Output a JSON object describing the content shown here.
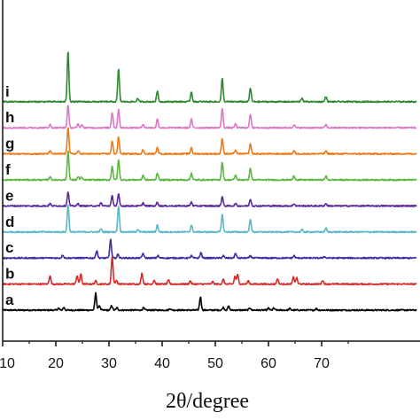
{
  "chart_data": {
    "type": "line",
    "title": "",
    "xlabel": "2θ/degree",
    "ylabel": "",
    "xlim": [
      10,
      75
    ],
    "x_ticks": [
      "10",
      "20",
      "30",
      "40",
      "50",
      "60",
      "70"
    ],
    "x_tick_values": [
      10,
      20,
      30,
      40,
      50,
      60,
      70
    ],
    "grid": false,
    "legend": "none",
    "stacked": true,
    "series": [
      {
        "name": "a",
        "color": "#000000",
        "offset": 0,
        "peaks": [
          [
            20.5,
            0.25
          ],
          [
            21.5,
            0.35
          ],
          [
            27.5,
            2.2
          ],
          [
            28.2,
            0.6
          ],
          [
            30.5,
            0.6
          ],
          [
            31.5,
            0.3
          ],
          [
            36.5,
            0.3
          ],
          [
            41.5,
            0.2
          ],
          [
            47.2,
            1.7
          ],
          [
            51.5,
            0.35
          ],
          [
            52.5,
            0.5
          ],
          [
            56.5,
            0.3
          ],
          [
            60,
            0.25
          ],
          [
            61,
            0.25
          ],
          [
            64,
            0.2
          ],
          [
            69,
            0.2
          ]
        ]
      },
      {
        "name": "b",
        "color": "#d62a2a",
        "offset": 1,
        "peaks": [
          [
            18.9,
            1.1
          ],
          [
            24.0,
            1.1
          ],
          [
            24.7,
            1.3
          ],
          [
            27.5,
            0.4
          ],
          [
            30.6,
            3.6
          ],
          [
            31.4,
            0.5
          ],
          [
            36.2,
            1.4
          ],
          [
            38.5,
            0.5
          ],
          [
            41.2,
            0.5
          ],
          [
            45.3,
            0.4
          ],
          [
            49.5,
            0.3
          ],
          [
            51.5,
            0.6
          ],
          [
            53.7,
            1.0
          ],
          [
            54.2,
            1.2
          ],
          [
            56.2,
            0.4
          ],
          [
            61.7,
            0.7
          ],
          [
            64.7,
            0.9
          ],
          [
            65.3,
            0.8
          ],
          [
            70.2,
            0.5
          ]
        ]
      },
      {
        "name": "c",
        "color": "#3f2ca0",
        "offset": 2,
        "peaks": [
          [
            21.3,
            0.4
          ],
          [
            27.7,
            1.0
          ],
          [
            30.3,
            2.4
          ],
          [
            31.7,
            0.5
          ],
          [
            36.4,
            0.6
          ],
          [
            39.2,
            0.3
          ],
          [
            45.5,
            0.3
          ],
          [
            47.3,
            0.7
          ],
          [
            51.5,
            0.3
          ],
          [
            53.8,
            0.6
          ],
          [
            56.6,
            0.3
          ],
          [
            64.8,
            0.3
          ],
          [
            70.5,
            0.2
          ]
        ]
      },
      {
        "name": "d",
        "color": "#5ab8c8",
        "offset": 3,
        "peaks": [
          [
            22.3,
            3.6
          ],
          [
            28.5,
            0.4
          ],
          [
            31.8,
            3.4
          ],
          [
            35.4,
            0.35
          ],
          [
            39.1,
            0.9
          ],
          [
            45.5,
            0.9
          ],
          [
            51.3,
            2.3
          ],
          [
            56.6,
            1.7
          ],
          [
            66.3,
            0.3
          ],
          [
            70.8,
            0.5
          ]
        ]
      },
      {
        "name": "e",
        "color": "#5a2a9a",
        "offset": 4,
        "peaks": [
          [
            18.9,
            0.3
          ],
          [
            22.3,
            1.8
          ],
          [
            24.2,
            0.3
          ],
          [
            28.5,
            0.4
          ],
          [
            30.6,
            1.3
          ],
          [
            31.8,
            1.5
          ],
          [
            36.4,
            0.4
          ],
          [
            39.1,
            0.5
          ],
          [
            45.5,
            0.5
          ],
          [
            51.3,
            1.2
          ],
          [
            53.8,
            0.3
          ],
          [
            56.6,
            0.9
          ],
          [
            64.8,
            0.3
          ],
          [
            70.8,
            0.3
          ]
        ]
      },
      {
        "name": "f",
        "color": "#5cb840",
        "offset": 5,
        "peaks": [
          [
            18.9,
            0.4
          ],
          [
            22.3,
            3.8
          ],
          [
            24.2,
            0.4
          ],
          [
            24.8,
            0.35
          ],
          [
            30.6,
            1.8
          ],
          [
            31.8,
            2.6
          ],
          [
            36.4,
            0.6
          ],
          [
            39.1,
            0.9
          ],
          [
            45.5,
            0.9
          ],
          [
            51.3,
            2.3
          ],
          [
            53.8,
            0.6
          ],
          [
            56.6,
            1.5
          ],
          [
            64.8,
            0.5
          ],
          [
            70.8,
            0.5
          ]
        ]
      },
      {
        "name": "g",
        "color": "#f07a18",
        "offset": 6,
        "peaks": [
          [
            18.9,
            0.4
          ],
          [
            22.3,
            3.5
          ],
          [
            24.2,
            0.4
          ],
          [
            30.6,
            1.6
          ],
          [
            31.8,
            2.2
          ],
          [
            36.4,
            0.5
          ],
          [
            39.1,
            0.8
          ],
          [
            45.5,
            0.8
          ],
          [
            51.3,
            2.0
          ],
          [
            53.8,
            0.5
          ],
          [
            56.6,
            1.3
          ],
          [
            64.8,
            0.4
          ],
          [
            70.8,
            0.4
          ]
        ]
      },
      {
        "name": "h",
        "color": "#d878c8",
        "offset": 7,
        "peaks": [
          [
            18.9,
            0.4
          ],
          [
            22.3,
            3.0
          ],
          [
            24.2,
            0.5
          ],
          [
            24.9,
            0.4
          ],
          [
            30.6,
            2.0
          ],
          [
            31.8,
            2.4
          ],
          [
            36.4,
            0.5
          ],
          [
            39.1,
            1.1
          ],
          [
            45.5,
            1.1
          ],
          [
            51.3,
            2.5
          ],
          [
            53.8,
            0.5
          ],
          [
            56.6,
            1.8
          ],
          [
            64.8,
            0.4
          ],
          [
            70.8,
            0.4
          ]
        ]
      },
      {
        "name": "i",
        "color": "#2e8a2e",
        "offset": 8,
        "peaks": [
          [
            22.3,
            6.5
          ],
          [
            31.8,
            4.2
          ],
          [
            35.4,
            0.4
          ],
          [
            39.1,
            1.4
          ],
          [
            45.5,
            1.3
          ],
          [
            51.3,
            3.0
          ],
          [
            56.6,
            1.8
          ],
          [
            66.3,
            0.5
          ],
          [
            70.8,
            0.7
          ]
        ]
      }
    ]
  }
}
